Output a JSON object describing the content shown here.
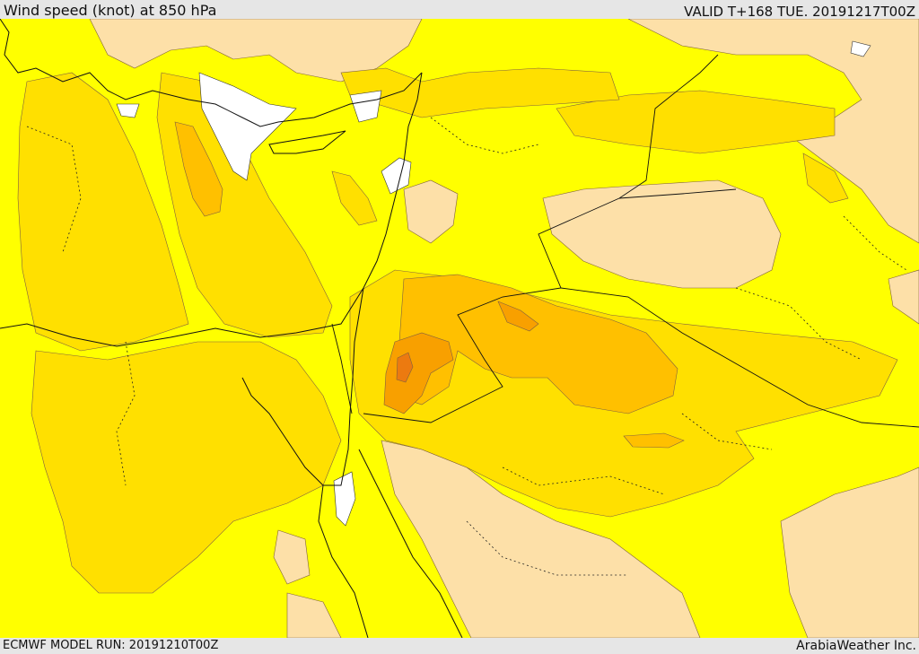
{
  "header": {
    "title": "Wind speed (knot) at 850 hPa",
    "valid": "VALID T+168 TUE. 20191217T00Z"
  },
  "footer": {
    "model_run": "ECMWF MODEL RUN: 20191210T00Z",
    "credit": "ArabiaWeather Inc."
  },
  "map": {
    "variable": "wind speed",
    "units": "knot",
    "level": "850 hPa",
    "colors": {
      "light_tan": "#fde0a8",
      "yellow": "#ffff00",
      "gold": "#ffe000",
      "amber": "#ffc000",
      "orange": "#f8a000",
      "dark_orange": "#ec7a10",
      "water_or_missing": "#ffffff"
    }
  }
}
